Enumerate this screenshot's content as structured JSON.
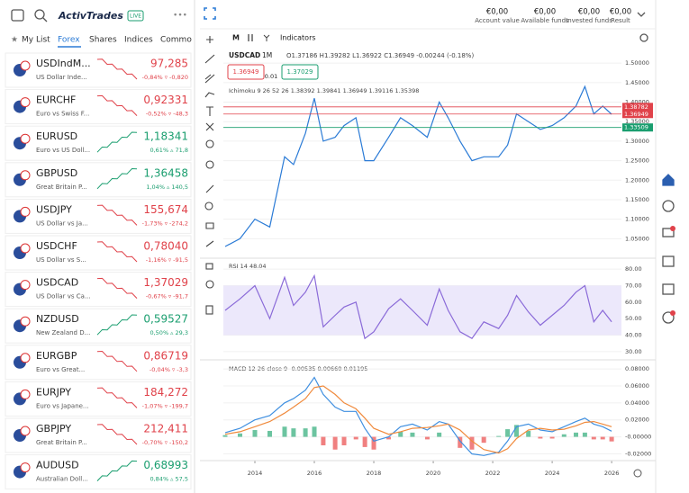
{
  "sidebar": {
    "logo": "ActivTrades",
    "live": "LIVE",
    "tabs": [
      "My List",
      "Forex",
      "Shares",
      "Indices",
      "Commo"
    ],
    "active_tab": 1,
    "watchlist": [
      {
        "symbol": "USDIndM...",
        "description": "US Dollar Inde...",
        "price": "97,285",
        "change": "-0,84% ▿ -0,820",
        "color": "#e0424a"
      },
      {
        "symbol": "EURCHF",
        "description": "Euro vs Swiss F...",
        "price": "0,92331",
        "change": "-0,52% ▿ -48,3",
        "color": "#e0424a"
      },
      {
        "symbol": "EURUSD",
        "description": "Euro vs US Doll...",
        "price": "1,18341",
        "change": "0,61% ▵ 71,8",
        "color": "#1a9e6f"
      },
      {
        "symbol": "GBPUSD",
        "description": "Great Britain P...",
        "price": "1,36458",
        "change": "1,04% ▵ 140,5",
        "color": "#1a9e6f"
      },
      {
        "symbol": "USDJPY",
        "description": "US Dollar vs Ja...",
        "price": "155,674",
        "change": "-1,73% ▿ -274,2",
        "color": "#e0424a"
      },
      {
        "symbol": "USDCHF",
        "description": "US Dollar vs S...",
        "price": "0,78040",
        "change": "-1,16% ▿ -91,5",
        "color": "#e0424a"
      },
      {
        "symbol": "USDCAD",
        "description": "US Dollar vs Ca...",
        "price": "1,37029",
        "change": "-0,67% ▿ -91,7",
        "color": "#e0424a"
      },
      {
        "symbol": "NZDUSD",
        "description": "New Zealand D...",
        "price": "0,59527",
        "change": "0,50% ▵ 29,3",
        "color": "#1a9e6f"
      },
      {
        "symbol": "EURGBP",
        "description": "Euro vs Great...",
        "price": "0,86719",
        "change": "-0,04% ▿ -3,3",
        "color": "#e0424a"
      },
      {
        "symbol": "EURJPY",
        "description": "Euro vs Japane...",
        "price": "184,272",
        "change": "-1,07% ▿ -199,7",
        "color": "#e0424a"
      },
      {
        "symbol": "GBPJPY",
        "description": "Great Britain P...",
        "price": "212,411",
        "change": "-0,70% ▿ -150,2",
        "color": "#e0424a"
      },
      {
        "symbol": "AUDUSD",
        "description": "Australian Doll...",
        "price": "0,68993",
        "change": "0,84% ▵ 57,5",
        "color": "#1a9e6f"
      }
    ]
  },
  "account": [
    {
      "value": "€0,00",
      "label": "Account value"
    },
    {
      "value": "€0,00",
      "label": "Available funds"
    },
    {
      "value": "€0,00",
      "label": "Invested funds"
    },
    {
      "value": "€0,00",
      "label": "Result"
    }
  ],
  "chart": {
    "timeframe": "M",
    "indicators_button": "Indicators",
    "symbol": "USDCAD",
    "interval": "1M",
    "ohlc": "O1.37186 H1.39282 L1.36922 C1.36949 -0.00244 (-0.18%)",
    "bid": "1.36949",
    "lot": "0.01",
    "ask": "1.37029",
    "ichimoku": "Ichimoku 9 26 52 26 1.38392 1.39841 1.36949 1.39116 1.35398",
    "rsi_label": "RSI 14 48.04",
    "macd_label": "MACD 12 26 close 9 -0.00535 0.00660 0.01195",
    "xlim": [
      2012.94,
      2026.33
    ],
    "xticks": [
      2014,
      2016,
      2018,
      2020,
      2022,
      2024,
      2026
    ],
    "x": [
      2013.0,
      2013.5,
      2014.0,
      2014.5,
      2015.0,
      2015.3,
      2015.7,
      2016.0,
      2016.3,
      2016.7,
      2017.0,
      2017.4,
      2017.7,
      2018.0,
      2018.5,
      2018.9,
      2019.3,
      2019.8,
      2020.2,
      2020.5,
      2020.9,
      2021.3,
      2021.7,
      2022.2,
      2022.5,
      2022.8,
      2023.2,
      2023.6,
      2024.0,
      2024.4,
      2024.8,
      2025.1,
      2025.4,
      2025.7,
      2026.0
    ],
    "price": {
      "color": "#2b7bd6",
      "ylim": [
        1.0,
        1.535
      ],
      "yticks": [
        {
          "value": 1.05,
          "label": "1.05000"
        },
        {
          "value": 1.1,
          "label": "1.10000"
        },
        {
          "value": 1.15,
          "label": "1.15000"
        },
        {
          "value": 1.2,
          "label": "1.20000"
        },
        {
          "value": 1.25,
          "label": "1.25000"
        },
        {
          "value": 1.3,
          "label": "1.30000"
        },
        {
          "value": 1.35,
          "label": "1.35000"
        },
        {
          "value": 1.4,
          "label": "1.40000"
        },
        {
          "value": 1.45,
          "label": "1.45000"
        },
        {
          "value": 1.5,
          "label": "1.50000"
        }
      ],
      "values": [
        1.03,
        1.05,
        1.1,
        1.08,
        1.26,
        1.24,
        1.32,
        1.41,
        1.3,
        1.31,
        1.34,
        1.36,
        1.25,
        1.25,
        1.31,
        1.36,
        1.34,
        1.31,
        1.4,
        1.36,
        1.3,
        1.25,
        1.26,
        1.26,
        1.29,
        1.37,
        1.35,
        1.33,
        1.34,
        1.36,
        1.39,
        1.44,
        1.37,
        1.39,
        1.369
      ],
      "levels": [
        {
          "value": 1.38782,
          "color": "#e0424a"
        },
        {
          "value": 1.36949,
          "color": "#e0424a"
        },
        {
          "value": 1.33509,
          "color": "#1a9e6f"
        }
      ]
    },
    "rsi": {
      "color": "#8a6ad8",
      "ylim": [
        25,
        85
      ],
      "yticks": [
        {
          "value": 30,
          "label": "30.00"
        },
        {
          "value": 40,
          "label": "40.00"
        },
        {
          "value": 50,
          "label": "50.00"
        },
        {
          "value": 60,
          "label": "60.00"
        },
        {
          "value": 70,
          "label": "70.00"
        },
        {
          "value": 80,
          "label": "80.00"
        }
      ],
      "values": [
        55,
        62,
        70,
        50,
        75,
        58,
        66,
        76,
        45,
        52,
        57,
        60,
        38,
        42,
        56,
        62,
        55,
        46,
        68,
        55,
        42,
        38,
        48,
        44,
        52,
        64,
        54,
        46,
        52,
        58,
        66,
        70,
        48,
        55,
        48
      ]
    },
    "macd": {
      "ylim": [
        -0.028,
        0.0875
      ],
      "yticks": [
        {
          "value": -0.02,
          "label": "-0.02000"
        },
        {
          "value": 0,
          "label": "-0.00000"
        },
        {
          "value": 0.02,
          "label": "0.02000"
        },
        {
          "value": 0.04,
          "label": "0.04000"
        },
        {
          "value": 0.06,
          "label": "0.06000"
        },
        {
          "value": 0.08,
          "label": "0.08000"
        }
      ],
      "series": [
        {
          "color": "#3f8fe0",
          "values": [
            0.005,
            0.01,
            0.02,
            0.025,
            0.04,
            0.045,
            0.055,
            0.07,
            0.05,
            0.035,
            0.03,
            0.03,
            0.01,
            -0.005,
            0.0,
            0.012,
            0.015,
            0.008,
            0.018,
            0.015,
            -0.005,
            -0.02,
            -0.022,
            -0.018,
            -0.005,
            0.012,
            0.015,
            0.008,
            0.006,
            0.012,
            0.018,
            0.022,
            0.015,
            0.012,
            0.0066
          ]
        },
        {
          "color": "#f08a3c",
          "values": [
            0.003,
            0.006,
            0.012,
            0.018,
            0.028,
            0.035,
            0.045,
            0.058,
            0.06,
            0.05,
            0.04,
            0.033,
            0.022,
            0.01,
            0.003,
            0.006,
            0.01,
            0.011,
            0.013,
            0.015,
            0.008,
            -0.005,
            -0.015,
            -0.019,
            -0.014,
            -0.002,
            0.008,
            0.01,
            0.008,
            0.009,
            0.013,
            0.017,
            0.018,
            0.015,
            0.012
          ]
        }
      ],
      "histogram": [
        0.002,
        0.004,
        0.008,
        0.007,
        0.012,
        0.01,
        0.01,
        0.012,
        -0.01,
        -0.015,
        -0.01,
        -0.003,
        -0.012,
        -0.015,
        -0.003,
        0.006,
        0.005,
        -0.003,
        0.005,
        0,
        -0.013,
        -0.015,
        -0.007,
        0.001,
        0.009,
        0.014,
        0.007,
        -0.002,
        -0.002,
        0.003,
        0.005,
        0.005,
        -0.003,
        -0.003,
        -0.0054
      ]
    }
  }
}
